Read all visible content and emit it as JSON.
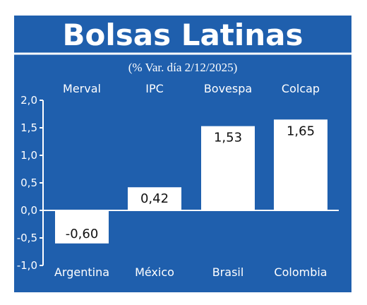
{
  "colors": {
    "panel": "#1f5fad",
    "border": "#ffffff",
    "bar_fill": "#ffffff",
    "text_light": "#ffffff",
    "text_dark": "#111111"
  },
  "chart_data": {
    "type": "bar",
    "title": "Bolsas Latinas",
    "subtitle": "(% Var. día 2/12/2025)",
    "indices": [
      "Merval",
      "IPC",
      "Bovespa",
      "Colcap"
    ],
    "categories": [
      "Argentina",
      "México",
      "Brasil",
      "Colombia"
    ],
    "values": [
      -0.6,
      0.42,
      1.53,
      1.65
    ],
    "value_labels": [
      "-0,60",
      "0,42",
      "1,53",
      "1,65"
    ],
    "y_ticks": [
      -1.0,
      -0.5,
      0.0,
      0.5,
      1.0,
      1.5,
      2.0
    ],
    "y_tick_labels": [
      "-1,0",
      "-0,5",
      "0,0",
      "0,5",
      "1,0",
      "1,5",
      "2,0"
    ],
    "ylim": [
      -1.0,
      2.0
    ],
    "grid": false,
    "legend": "none"
  }
}
